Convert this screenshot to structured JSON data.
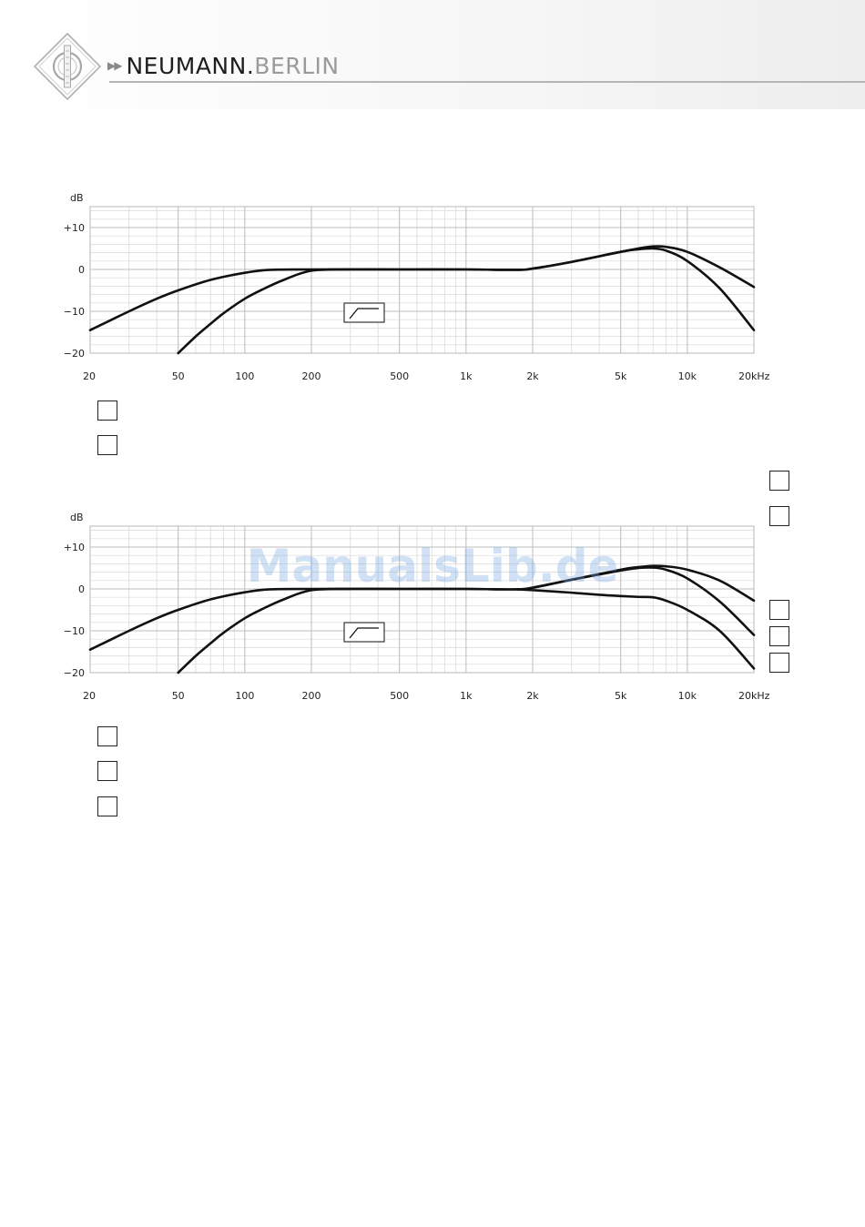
{
  "header": {
    "brand_name": "NEUMANN.",
    "brand_city": "BERLIN",
    "logo_text": "NEUMANN"
  },
  "watermark": "ManualsLib.de",
  "chart_data": [
    {
      "type": "line",
      "title": "",
      "ylabel": "dB",
      "xscale": "log",
      "xlim": [
        20,
        20000
      ],
      "ylim": [
        -20,
        15
      ],
      "xticks": [
        {
          "value": 20,
          "label": "20"
        },
        {
          "value": 50,
          "label": "50"
        },
        {
          "value": 100,
          "label": "100"
        },
        {
          "value": 200,
          "label": "200"
        },
        {
          "value": 500,
          "label": "500"
        },
        {
          "value": 1000,
          "label": "1k"
        },
        {
          "value": 2000,
          "label": "2k"
        },
        {
          "value": 5000,
          "label": "5k"
        },
        {
          "value": 10000,
          "label": "10k"
        },
        {
          "value": 20000,
          "label": "20kHz"
        }
      ],
      "yticks": [
        {
          "value": 10,
          "label": "+10"
        },
        {
          "value": 0,
          "label": "0"
        },
        {
          "value": -10,
          "label": "−10"
        },
        {
          "value": -20,
          "label": "−20"
        }
      ],
      "grid": true,
      "filter_icon": "high-pass-filter-icon",
      "legend_boxes_right": 2,
      "legend_boxes_below": 2,
      "series": [
        {
          "x": [
            20,
            30,
            40,
            50,
            70,
            100,
            130,
            200,
            500,
            1000,
            1700,
            2000,
            3000,
            5000,
            6000,
            7000,
            8000,
            10000,
            14000,
            20000
          ],
          "y": [
            -14.5,
            -10,
            -7,
            -5,
            -2.5,
            -0.8,
            -0.1,
            0,
            0,
            0,
            -0.1,
            0.2,
            1.8,
            4.2,
            5.0,
            5.5,
            5.4,
            4.2,
            0.5,
            -4.2
          ]
        },
        {
          "x": [
            50,
            60,
            70,
            80,
            100,
            120,
            150,
            200,
            300,
            500,
            1000,
            1700,
            2000,
            3000,
            5000,
            6000,
            7000,
            8000,
            10000,
            14000,
            20000
          ],
          "y": [
            -20,
            -16,
            -13,
            -10.5,
            -7,
            -4.8,
            -2.5,
            -0.3,
            0,
            0,
            0,
            -0.1,
            0.2,
            1.8,
            4.2,
            4.8,
            5.0,
            4.5,
            2,
            -4.5,
            -14.5
          ]
        }
      ]
    },
    {
      "type": "line",
      "title": "",
      "ylabel": "dB",
      "xscale": "log",
      "xlim": [
        20,
        20000
      ],
      "ylim": [
        -20,
        15
      ],
      "xticks": [
        {
          "value": 20,
          "label": "20"
        },
        {
          "value": 50,
          "label": "50"
        },
        {
          "value": 100,
          "label": "100"
        },
        {
          "value": 200,
          "label": "200"
        },
        {
          "value": 500,
          "label": "500"
        },
        {
          "value": 1000,
          "label": "1k"
        },
        {
          "value": 2000,
          "label": "2k"
        },
        {
          "value": 5000,
          "label": "5k"
        },
        {
          "value": 10000,
          "label": "10k"
        },
        {
          "value": 20000,
          "label": "20kHz"
        }
      ],
      "yticks": [
        {
          "value": 10,
          "label": "+10"
        },
        {
          "value": 0,
          "label": "0"
        },
        {
          "value": -10,
          "label": "−10"
        },
        {
          "value": -20,
          "label": "−20"
        }
      ],
      "grid": true,
      "filter_icon": "high-pass-filter-icon",
      "legend_boxes_right": 3,
      "legend_boxes_below": 3,
      "series": [
        {
          "x": [
            20,
            30,
            40,
            50,
            70,
            100,
            130,
            200,
            500,
            1000,
            1700,
            2000,
            3000,
            5000,
            6000,
            7000,
            8000,
            10000,
            14000,
            20000
          ],
          "y": [
            -14.5,
            -10,
            -7,
            -5,
            -2.5,
            -0.8,
            -0.1,
            0,
            0,
            0,
            -0.1,
            0.3,
            2.2,
            4.6,
            5.2,
            5.5,
            5.4,
            4.6,
            2.0,
            -2.8
          ]
        },
        {
          "x": [
            50,
            60,
            70,
            80,
            100,
            120,
            150,
            200,
            300,
            500,
            1000,
            1700,
            2000,
            3000,
            5000,
            6000,
            7000,
            8000,
            10000,
            14000,
            20000
          ],
          "y": [
            -20,
            -16,
            -13,
            -10.5,
            -7,
            -4.8,
            -2.5,
            -0.3,
            0,
            0,
            0,
            -0.1,
            0.3,
            2.2,
            4.4,
            5.0,
            5.1,
            4.6,
            2.5,
            -3.0,
            -11.0
          ]
        },
        {
          "x": [
            1700,
            2000,
            3000,
            4000,
            5000,
            6000,
            7000,
            8000,
            10000,
            14000,
            20000
          ],
          "y": [
            -0.1,
            -0.3,
            -0.9,
            -1.4,
            -1.7,
            -1.9,
            -2.0,
            -2.8,
            -5.0,
            -10.0,
            -19.0
          ]
        }
      ]
    }
  ]
}
